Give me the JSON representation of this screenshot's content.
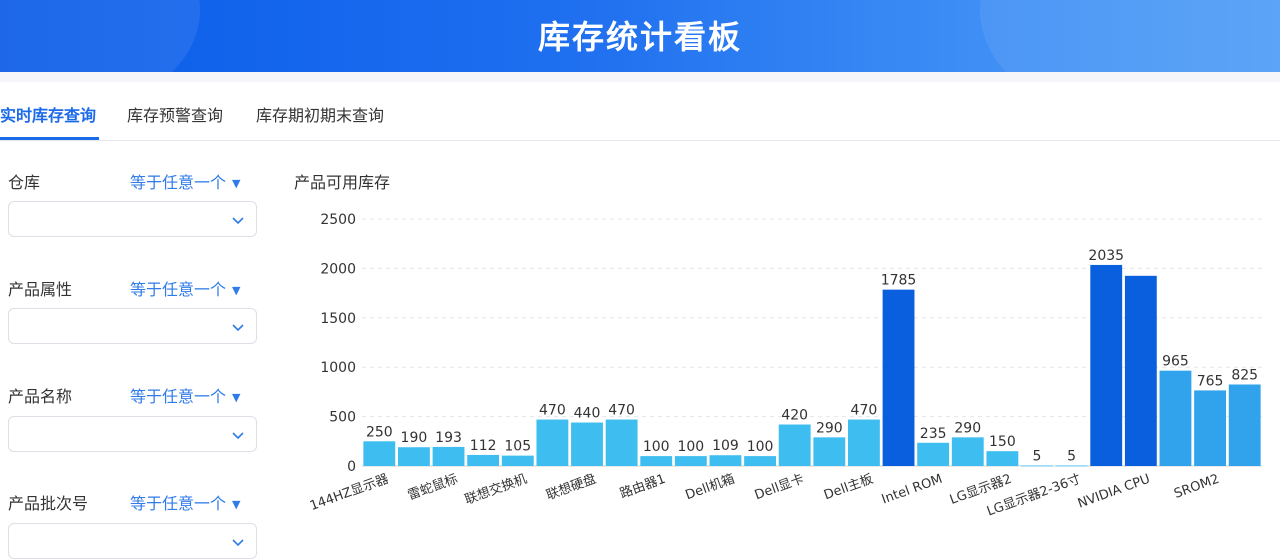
{
  "header": {
    "title": "库存统计看板"
  },
  "tabs": [
    {
      "label": "实时库存查询",
      "active": true
    },
    {
      "label": "库存预警查询",
      "active": false
    },
    {
      "label": "库存期初期末查询",
      "active": false
    }
  ],
  "filters": [
    {
      "label": "仓库",
      "operator": "等于任意一个",
      "value": ""
    },
    {
      "label": "产品属性",
      "operator": "等于任意一个",
      "value": ""
    },
    {
      "label": "产品名称",
      "operator": "等于任意一个",
      "value": ""
    },
    {
      "label": "产品批次号",
      "operator": "等于任意一个",
      "value": ""
    }
  ],
  "icons": {
    "dropdown_triangle": "caret-down-icon",
    "select_chevron": "chevron-down-icon"
  },
  "colors": {
    "accent": "#1b6ae8",
    "bar_light": "#3dbdf0",
    "bar_dark": "#0a5fdf",
    "bar_mid": "#30a3ec"
  },
  "chart_data": {
    "type": "bar",
    "title": "产品可用库存",
    "xlabel": "",
    "ylabel": "",
    "ylim": [
      0,
      2500
    ],
    "yticks": [
      0,
      500,
      1000,
      1500,
      2000,
      2500
    ],
    "grid": true,
    "values": [
      250,
      190,
      193,
      112,
      105,
      470,
      440,
      470,
      100,
      100,
      109,
      100,
      420,
      290,
      470,
      1785,
      235,
      290,
      150,
      5,
      5,
      2035,
      1925,
      965,
      765,
      825
    ],
    "data_labels": [
      "250",
      "190",
      "193",
      "112",
      "105",
      "470",
      "440",
      "470",
      "100",
      "100",
      "109",
      "100",
      "420",
      "290",
      "470",
      "1785",
      "235",
      "290",
      "150",
      "5",
      "5",
      "2035",
      "",
      "965",
      "765",
      "825"
    ],
    "bar_colors": [
      "#3dbdf0",
      "#3dbdf0",
      "#3dbdf0",
      "#3dbdf0",
      "#3dbdf0",
      "#3dbdf0",
      "#3dbdf0",
      "#3dbdf0",
      "#3dbdf0",
      "#3dbdf0",
      "#3dbdf0",
      "#3dbdf0",
      "#3dbdf0",
      "#3dbdf0",
      "#3dbdf0",
      "#0a5fdf",
      "#3dbdf0",
      "#3dbdf0",
      "#3dbdf0",
      "#3dbdf0",
      "#3dbdf0",
      "#0a5fdf",
      "#0a5fdf",
      "#30a3ec",
      "#30a3ec",
      "#30a3ec"
    ],
    "tick_labels": [
      {
        "text": "144HZ显示器",
        "bar": 0
      },
      {
        "text": "雷蛇鼠标",
        "bar": 2
      },
      {
        "text": "联想交换机",
        "bar": 4
      },
      {
        "text": "联想硬盘",
        "bar": 6
      },
      {
        "text": "路由器1",
        "bar": 8
      },
      {
        "text": "Dell机箱",
        "bar": 10
      },
      {
        "text": "Dell显卡",
        "bar": 12
      },
      {
        "text": "Dell主板",
        "bar": 14
      },
      {
        "text": "Intel ROM",
        "bar": 16
      },
      {
        "text": "LG显示器2",
        "bar": 18
      },
      {
        "text": "LG显示器2-36寸",
        "bar": 20
      },
      {
        "text": "NVIDIA CPU",
        "bar": 22
      },
      {
        "text": "SROM2",
        "bar": 24
      }
    ]
  }
}
